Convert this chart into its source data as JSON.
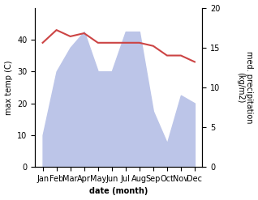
{
  "months": [
    "Jan",
    "Feb",
    "Mar",
    "Apr",
    "May",
    "Jun",
    "Jul",
    "Aug",
    "Sep",
    "Oct",
    "Nov",
    "Dec"
  ],
  "max_temp": [
    39,
    43,
    41,
    42,
    39,
    39,
    39,
    39,
    38,
    35,
    35,
    33
  ],
  "precip_kg": [
    4,
    12,
    15,
    17,
    12,
    12,
    17,
    17,
    7,
    3,
    9,
    8
  ],
  "temp_color": "#cc4444",
  "precip_fill_color": "#bcc5e8",
  "ylabel_left": "max temp (C)",
  "ylabel_right": "med. precipitation\n(kg/m2)",
  "xlabel": "date (month)",
  "ylim_left": [
    0,
    50
  ],
  "ylim_right": [
    0,
    20
  ],
  "yticks_left": [
    0,
    10,
    20,
    30,
    40
  ],
  "yticks_right": [
    0,
    5,
    10,
    15,
    20
  ],
  "bg_color": "#ffffff",
  "label_fontsize": 7,
  "tick_fontsize": 7
}
